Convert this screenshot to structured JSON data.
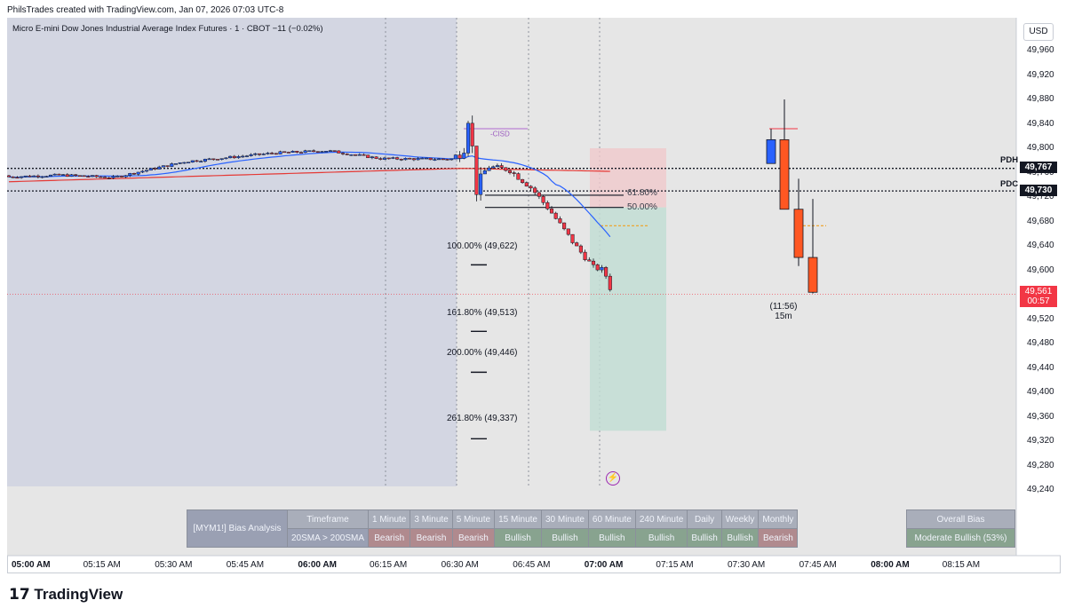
{
  "header": {
    "credit": "PhilsTrades created with TradingView.com, Jan 07, 2026 07:03 UTC-8"
  },
  "symbol": {
    "title": "Micro E-mini Dow Jones Industrial Average Index Futures · 1 · CBOT  −11 (−0.02%)"
  },
  "currency": "USD",
  "colors": {
    "up": "#2962ff",
    "down": "#f23645",
    "sma20": "#2962ff",
    "sma200": "#e53935",
    "session_bg": "#d1d4e0",
    "bg": "#e6e6e6"
  },
  "chart_data": {
    "type": "candlestick",
    "y_axis": {
      "ticks": [
        "49,960",
        "49,920",
        "49,880",
        "49,840",
        "49,800",
        "49,760",
        "49,720",
        "49,680",
        "49,640",
        "49,600",
        "49,560",
        "49,520",
        "49,480",
        "49,440",
        "49,400",
        "49,360",
        "49,320",
        "49,280",
        "49,240"
      ],
      "ylim": [
        49240,
        49980
      ]
    },
    "x_axis": {
      "ticks": [
        {
          "label": "05:00 AM",
          "bold": true
        },
        {
          "label": "05:15 AM",
          "bold": false
        },
        {
          "label": "05:30 AM",
          "bold": false
        },
        {
          "label": "05:45 AM",
          "bold": false
        },
        {
          "label": "06:00 AM",
          "bold": true
        },
        {
          "label": "06:15 AM",
          "bold": false
        },
        {
          "label": "06:30 AM",
          "bold": false
        },
        {
          "label": "06:45 AM",
          "bold": false
        },
        {
          "label": "07:00 AM",
          "bold": true
        },
        {
          "label": "07:15 AM",
          "bold": false
        },
        {
          "label": "07:30 AM",
          "bold": false
        },
        {
          "label": "07:45 AM",
          "bold": false
        },
        {
          "label": "08:00 AM",
          "bold": true
        },
        {
          "label": "08:15 AM",
          "bold": false
        }
      ]
    },
    "levels": [
      {
        "name": "PDH",
        "value": "49,767",
        "price": 49767
      },
      {
        "name": "PDC",
        "value": "49,730",
        "price": 49730
      }
    ],
    "current_price": {
      "value": "49,561",
      "countdown": "00:57"
    },
    "fib_labels": [
      {
        "text": "100.00% (49,622)",
        "price": 49622
      },
      {
        "text": "161.80% (49,513)",
        "price": 49513
      },
      {
        "text": "200.00% (49,446)",
        "price": 49446
      },
      {
        "text": "261.80% (49,337)",
        "price": 49337
      },
      {
        "text": "61.80%",
        "price": 49723
      },
      {
        "text": "50.00%",
        "price": 49703
      }
    ],
    "annotations": {
      "cisd": "-CISD",
      "htf_timer": "(11:56)",
      "htf_label": "15m"
    },
    "htf_candles": [
      {
        "o": 49775,
        "h": 49832,
        "l": 49775,
        "c": 49814
      },
      {
        "o": 49814,
        "h": 49880,
        "l": 49700,
        "c": 49700
      },
      {
        "o": 49700,
        "h": 49750,
        "l": 49607,
        "c": 49621
      },
      {
        "o": 49621,
        "h": 49717,
        "l": 49562,
        "c": 49564
      }
    ]
  },
  "bias_table": {
    "title": "[MYM1!] Bias Analysis",
    "row1_label": "Timeframe",
    "row2_label": "20SMA > 200SMA",
    "timeframes": [
      {
        "tf": "1 Minute",
        "bias": "Bearish"
      },
      {
        "tf": "3 Minute",
        "bias": "Bearish"
      },
      {
        "tf": "5 Minute",
        "bias": "Bearish"
      },
      {
        "tf": "15 Minute",
        "bias": "Bullish"
      },
      {
        "tf": "30 Minute",
        "bias": "Bullish"
      },
      {
        "tf": "60 Minute",
        "bias": "Bullish"
      },
      {
        "tf": "240 Minute",
        "bias": "Bullish"
      },
      {
        "tf": "Daily",
        "bias": "Bullish"
      },
      {
        "tf": "Weekly",
        "bias": "Bullish"
      },
      {
        "tf": "Monthly",
        "bias": "Bearish"
      }
    ]
  },
  "overall_bias": {
    "label": "Overall Bias",
    "value": "Moderate Bullish (53%)"
  },
  "footer": {
    "brand": "TradingView"
  }
}
